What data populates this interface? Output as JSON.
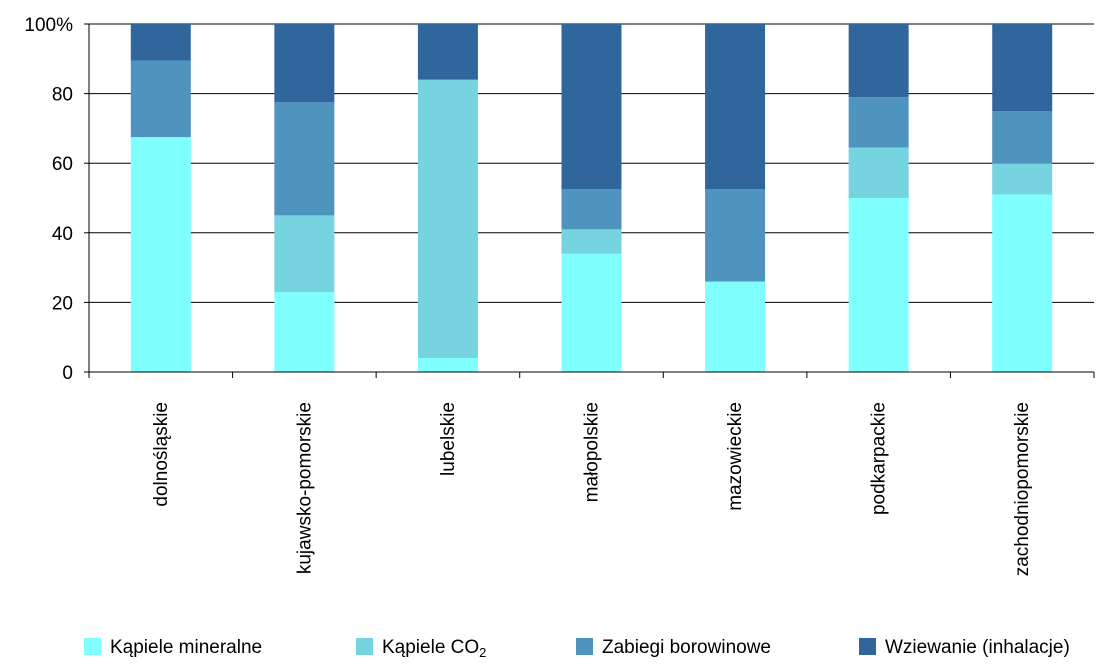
{
  "chart_data": {
    "type": "bar",
    "stacked": "percent",
    "categories": [
      "dolnośląskie",
      "kujawsko-pomorskie",
      "lubelskie",
      "małopolskie",
      "mazowieckie",
      "podkarpackie",
      "zachodniopomorskie"
    ],
    "series": [
      {
        "name": "Kąpiele mineralne",
        "legend_main": "Kąpiele mineralne",
        "legend_sub": "",
        "color": "#80FFFF",
        "values": [
          67.5,
          23,
          4,
          34,
          26,
          50,
          51
        ]
      },
      {
        "name": "Kąpiele CO2",
        "legend_main": "Kąpiele CO",
        "legend_sub": "2",
        "color": "#76D3E0",
        "values": [
          0,
          22,
          80,
          7,
          0,
          14.5,
          9
        ]
      },
      {
        "name": "Zabiegi borowinowe",
        "legend_main": "Zabiegi borowinowe",
        "legend_sub": "",
        "color": "#4F94BF",
        "values": [
          22,
          32.5,
          0,
          11.5,
          26.5,
          14.5,
          15
        ]
      },
      {
        "name": "Wziewanie (inhalacje)",
        "legend_main": "Wziewanie (inhalacje)",
        "legend_sub": "",
        "color": "#31669D",
        "values": [
          10.5,
          22.5,
          16,
          47.5,
          47.5,
          21,
          25
        ]
      }
    ],
    "yticks": [
      "0",
      "20",
      "40",
      "60",
      "80",
      "100%"
    ],
    "ylim": [
      0,
      100
    ],
    "grid": true,
    "legend_position": "bottom"
  }
}
